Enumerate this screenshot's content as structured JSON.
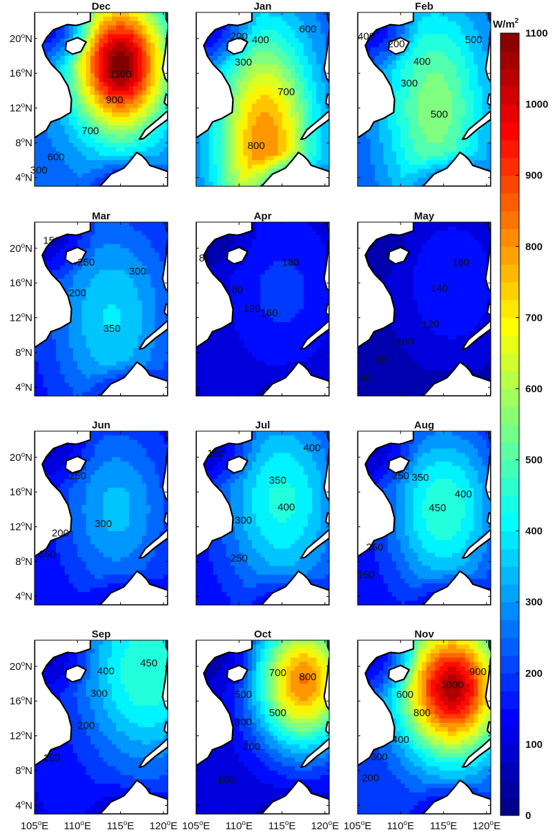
{
  "figure": {
    "unit_label": "W/m",
    "unit_superscript": "2",
    "colormap": "jet",
    "value_range": [
      0,
      1100
    ],
    "colorbar_ticks": [
      "0",
      "100",
      "200",
      "300",
      "400",
      "500",
      "600",
      "700",
      "800",
      "900",
      "1000",
      "1100"
    ],
    "lat_ticks": [
      {
        "lat": 20,
        "label": "20",
        "sup": "o",
        "hem": "N"
      },
      {
        "lat": 16,
        "label": "16",
        "sup": "o",
        "hem": "N"
      },
      {
        "lat": 12,
        "label": "12",
        "sup": "o",
        "hem": "N"
      },
      {
        "lat": 8,
        "label": "8",
        "sup": "o",
        "hem": "N"
      },
      {
        "lat": 4,
        "label": "4",
        "sup": "o",
        "hem": "N"
      }
    ],
    "lon_ticks": [
      {
        "lon": 105,
        "label": "105",
        "sup": "o",
        "hem": "E"
      },
      {
        "lon": 110,
        "label": "110",
        "sup": "o",
        "hem": "E"
      },
      {
        "lon": 115,
        "label": "115",
        "sup": "o",
        "hem": "E"
      },
      {
        "lon": 120,
        "label": "120",
        "sup": "o",
        "hem": "E"
      }
    ],
    "lon_range": [
      105,
      120.5
    ],
    "lat_range": [
      3,
      23
    ]
  },
  "panels": [
    {
      "title": "Dec",
      "peak": 1100,
      "core": [
        115,
        17
      ],
      "sx": 3.8,
      "sy": 5.5,
      "floor": 250,
      "labels": [
        {
          "text": "1100",
          "lon": 115,
          "lat": 15.8
        },
        {
          "text": "900",
          "lon": 114.3,
          "lat": 12.9
        },
        {
          "text": "700",
          "lon": 111.5,
          "lat": 9.3
        },
        {
          "text": "600",
          "lon": 107.5,
          "lat": 6.3
        },
        {
          "text": "300",
          "lon": 105.5,
          "lat": 4.8
        }
      ]
    },
    {
      "title": "Jan",
      "peak": 820,
      "core": [
        113,
        8
      ],
      "sx": 4.0,
      "sy": 9.0,
      "floor": 220,
      "labels": [
        {
          "text": "200",
          "lon": 110,
          "lat": 20.2
        },
        {
          "text": "400",
          "lon": 112.5,
          "lat": 19.8
        },
        {
          "text": "600",
          "lon": 118,
          "lat": 21
        },
        {
          "text": "300",
          "lon": 110.5,
          "lat": 17.2
        },
        {
          "text": "700",
          "lon": 115.5,
          "lat": 13.8
        },
        {
          "text": "800",
          "lon": 112,
          "lat": 7.6
        }
      ]
    },
    {
      "title": "Feb",
      "peak": 560,
      "core": [
        114,
        12
      ],
      "sx": 4.5,
      "sy": 9.0,
      "floor": 200,
      "labels": [
        {
          "text": "400",
          "lon": 106,
          "lat": 20.2
        },
        {
          "text": "200",
          "lon": 109.5,
          "lat": 19.3
        },
        {
          "text": "500",
          "lon": 118.5,
          "lat": 19.8
        },
        {
          "text": "400",
          "lon": 112.5,
          "lat": 17.3
        },
        {
          "text": "300",
          "lon": 111,
          "lat": 14.8
        },
        {
          "text": "500",
          "lon": 114.5,
          "lat": 11.2
        }
      ]
    },
    {
      "title": "Mar",
      "peak": 380,
      "core": [
        114,
        12
      ],
      "sx": 5.0,
      "sy": 8.0,
      "floor": 130,
      "labels": [
        {
          "text": "150",
          "lon": 107,
          "lat": 20.8
        },
        {
          "text": "250",
          "lon": 111,
          "lat": 18.3
        },
        {
          "text": "300",
          "lon": 117,
          "lat": 17.3
        },
        {
          "text": "200",
          "lon": 110,
          "lat": 14.8
        },
        {
          "text": "350",
          "lon": 114,
          "lat": 10.7
        }
      ]
    },
    {
      "title": "Apr",
      "peak": 190,
      "core": [
        115,
        15
      ],
      "sx": 5.0,
      "sy": 7.0,
      "floor": 70,
      "labels": [
        {
          "text": "80",
          "lon": 106,
          "lat": 18.8
        },
        {
          "text": "180",
          "lon": 116,
          "lat": 18.3
        },
        {
          "text": "80",
          "lon": 109.8,
          "lat": 15.2
        },
        {
          "text": "120",
          "lon": 111.5,
          "lat": 13
        },
        {
          "text": "160",
          "lon": 113.5,
          "lat": 12.5
        }
      ]
    },
    {
      "title": "May",
      "peak": 170,
      "core": [
        116,
        16
      ],
      "sx": 5.0,
      "sy": 7.0,
      "floor": 35,
      "labels": [
        {
          "text": "160",
          "lon": 117,
          "lat": 18.3
        },
        {
          "text": "140",
          "lon": 114.5,
          "lat": 15.3
        },
        {
          "text": "120",
          "lon": 113.5,
          "lat": 11.2
        },
        {
          "text": "100",
          "lon": 110.5,
          "lat": 9.2
        },
        {
          "text": "80",
          "lon": 107.8,
          "lat": 7.1
        },
        {
          "text": "40",
          "lon": 106,
          "lat": 5
        }
      ]
    },
    {
      "title": "Jun",
      "peak": 340,
      "core": [
        114.5,
        14
      ],
      "sx": 4.5,
      "sy": 7.0,
      "floor": 120,
      "labels": [
        {
          "text": "250",
          "lon": 110,
          "lat": 17.8
        },
        {
          "text": "200",
          "lon": 108,
          "lat": 11.2
        },
        {
          "text": "300",
          "lon": 113,
          "lat": 12.3
        },
        {
          "text": "150",
          "lon": 106.5,
          "lat": 8.8
        }
      ]
    },
    {
      "title": "Jul",
      "peak": 440,
      "core": [
        115,
        15
      ],
      "sx": 5.0,
      "sy": 8.0,
      "floor": 120,
      "labels": [
        {
          "text": "150",
          "lon": 107.3,
          "lat": 20.4
        },
        {
          "text": "400",
          "lon": 118.5,
          "lat": 21
        },
        {
          "text": "350",
          "lon": 114.5,
          "lat": 17.3
        },
        {
          "text": "400",
          "lon": 115.5,
          "lat": 14.2
        },
        {
          "text": "300",
          "lon": 110.5,
          "lat": 12.7
        },
        {
          "text": "250",
          "lon": 110,
          "lat": 8.3
        }
      ]
    },
    {
      "title": "Aug",
      "peak": 470,
      "core": [
        115,
        14
      ],
      "sx": 4.5,
      "sy": 7.0,
      "floor": 120,
      "labels": [
        {
          "text": "250",
          "lon": 110,
          "lat": 17.8
        },
        {
          "text": "350",
          "lon": 112.3,
          "lat": 17.6
        },
        {
          "text": "400",
          "lon": 117.3,
          "lat": 15.7
        },
        {
          "text": "450",
          "lon": 114.3,
          "lat": 14.1
        },
        {
          "text": "250",
          "lon": 107,
          "lat": 9.6
        },
        {
          "text": "150",
          "lon": 106,
          "lat": 6.4
        }
      ]
    },
    {
      "title": "Sep",
      "peak": 470,
      "core": [
        118,
        19.5
      ],
      "sx": 5.5,
      "sy": 8.0,
      "floor": 120,
      "labels": [
        {
          "text": "400",
          "lon": 113.3,
          "lat": 19.4
        },
        {
          "text": "450",
          "lon": 118.3,
          "lat": 20.3
        },
        {
          "text": "300",
          "lon": 112.5,
          "lat": 16.8
        },
        {
          "text": "200",
          "lon": 111,
          "lat": 13.1
        },
        {
          "text": "150",
          "lon": 107,
          "lat": 9.4
        }
      ]
    },
    {
      "title": "Oct",
      "peak": 830,
      "core": [
        117.5,
        18.3
      ],
      "sx": 4.0,
      "sy": 5.5,
      "floor": 90,
      "labels": [
        {
          "text": "700",
          "lon": 114.5,
          "lat": 19.2
        },
        {
          "text": "800",
          "lon": 118,
          "lat": 18.7
        },
        {
          "text": "500",
          "lon": 110.5,
          "lat": 16.7
        },
        {
          "text": "500",
          "lon": 114.5,
          "lat": 14.6
        },
        {
          "text": "300",
          "lon": 110.5,
          "lat": 13.5
        },
        {
          "text": "200",
          "lon": 111.5,
          "lat": 10.7
        },
        {
          "text": "100",
          "lon": 108.5,
          "lat": 6.9
        }
      ]
    },
    {
      "title": "Nov",
      "peak": 1050,
      "core": [
        116,
        17.5
      ],
      "sx": 4.2,
      "sy": 5.5,
      "floor": 180,
      "labels": [
        {
          "text": "900",
          "lon": 119,
          "lat": 19.3
        },
        {
          "text": "1000",
          "lon": 116,
          "lat": 17.8
        },
        {
          "text": "600",
          "lon": 110.5,
          "lat": 16.7
        },
        {
          "text": "800",
          "lon": 112.5,
          "lat": 14.6
        },
        {
          "text": "400",
          "lon": 110,
          "lat": 11.5
        },
        {
          "text": "300",
          "lon": 107.5,
          "lat": 9.5
        },
        {
          "text": "200",
          "lon": 106.5,
          "lat": 7.1
        }
      ]
    }
  ]
}
